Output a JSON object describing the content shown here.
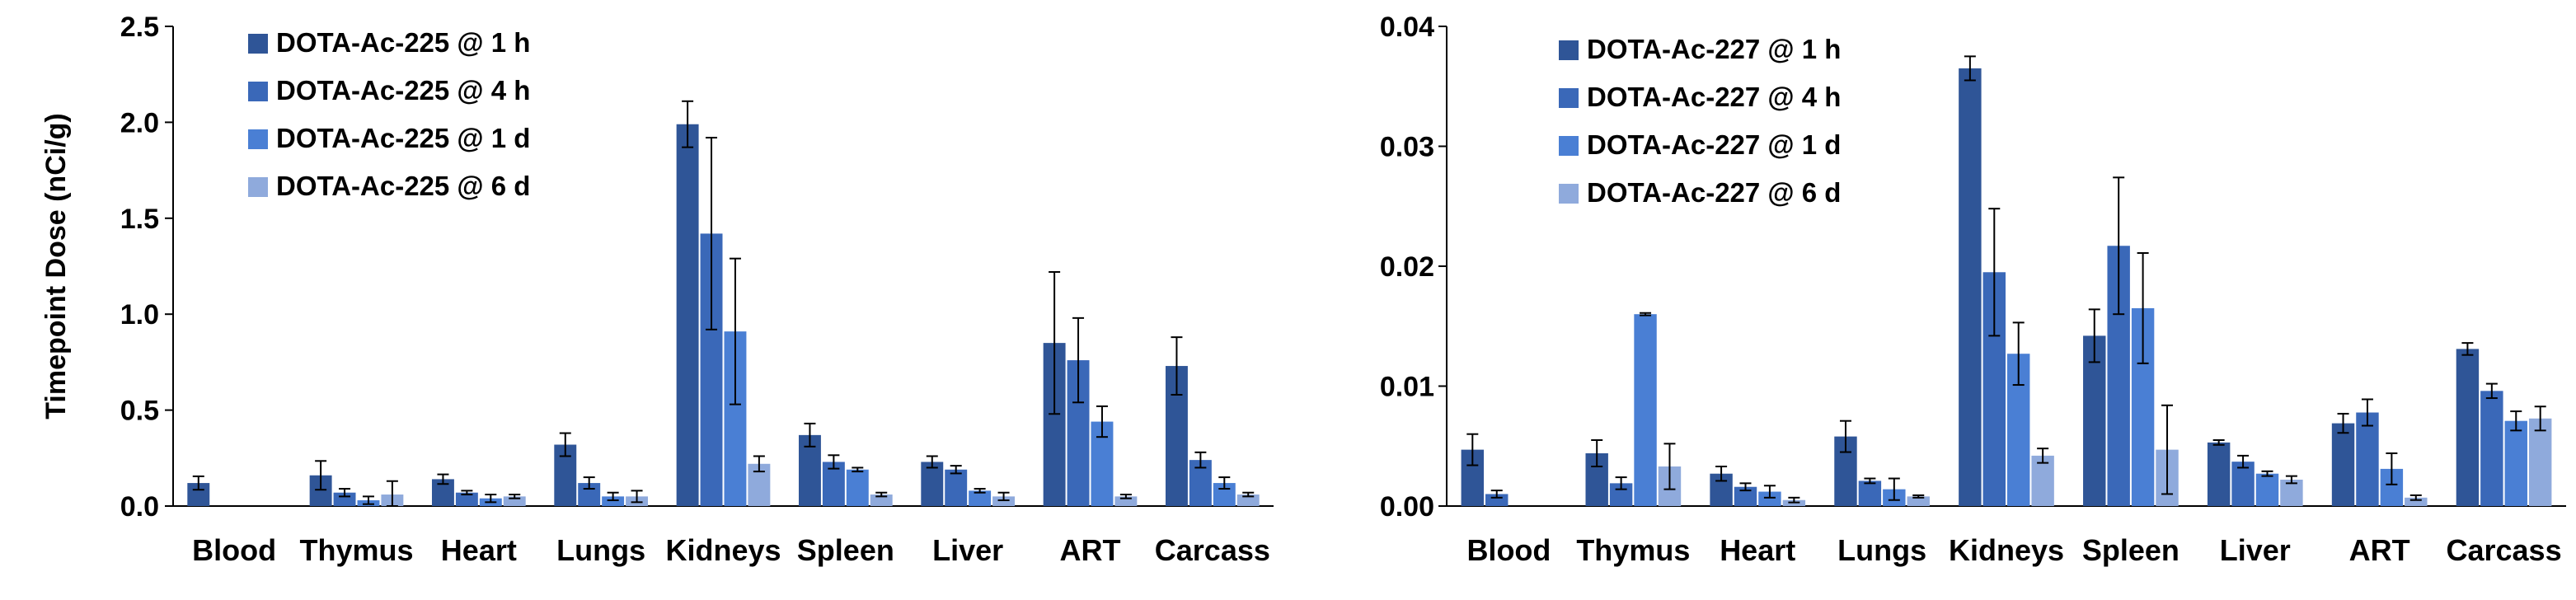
{
  "palette": [
    "#2f5597",
    "#3a68b8",
    "#4a7fd4",
    "#8faadc"
  ],
  "chart_data": [
    {
      "type": "bar",
      "title": "",
      "xlabel": "",
      "ylabel": "Timepoint Dose (nCi/g)",
      "ylim": [
        0,
        2.5
      ],
      "yticks": [
        "0.0",
        "0.5",
        "1.0",
        "1.5",
        "2.0",
        "2.5"
      ],
      "grid": false,
      "legend_position": "top-left",
      "categories": [
        "Blood",
        "Thymus",
        "Heart",
        "Lungs",
        "Kidneys",
        "Spleen",
        "Liver",
        "ART",
        "Carcass"
      ],
      "series": [
        {
          "name": "DOTA-Ac-225 @ 1 h",
          "values": [
            0.12,
            0.16,
            0.14,
            0.32,
            1.99,
            0.37,
            0.23,
            0.85,
            0.73
          ],
          "errors": [
            0.035,
            0.075,
            0.025,
            0.06,
            0.12,
            0.06,
            0.03,
            0.37,
            0.15
          ]
        },
        {
          "name": "DOTA-Ac-225 @ 4 h",
          "values": [
            0,
            0.07,
            0.07,
            0.12,
            1.42,
            0.23,
            0.19,
            0.76,
            0.24
          ],
          "errors": [
            0,
            0.02,
            0.01,
            0.03,
            0.5,
            0.035,
            0.02,
            0.22,
            0.04
          ]
        },
        {
          "name": "DOTA-Ac-225 @ 1 d",
          "values": [
            0,
            0.03,
            0.04,
            0.05,
            0.91,
            0.19,
            0.08,
            0.44,
            0.12
          ],
          "errors": [
            0,
            0.02,
            0.02,
            0.02,
            0.38,
            0.01,
            0.01,
            0.08,
            0.03
          ]
        },
        {
          "name": "DOTA-Ac-225 @ 6 d",
          "values": [
            0,
            0.06,
            0.05,
            0.05,
            0.22,
            0.06,
            0.05,
            0.05,
            0.06
          ],
          "errors": [
            0,
            0.07,
            0.01,
            0.03,
            0.04,
            0.01,
            0.02,
            0.01,
            0.01
          ]
        }
      ]
    },
    {
      "type": "bar",
      "title": "",
      "xlabel": "",
      "ylabel": "",
      "ylim": [
        0,
        0.04
      ],
      "yticks": [
        "0.00",
        "0.01",
        "0.02",
        "0.03",
        "0.04"
      ],
      "grid": false,
      "legend_position": "top-left",
      "categories": [
        "Blood",
        "Thymus",
        "Heart",
        "Lungs",
        "Kidneys",
        "Spleen",
        "Liver",
        "ART",
        "Carcass"
      ],
      "series": [
        {
          "name": "DOTA-Ac-227 @ 1 h",
          "values": [
            0.0047,
            0.0044,
            0.0027,
            0.0058,
            0.0365,
            0.0142,
            0.0053,
            0.0069,
            0.0131
          ],
          "errors": [
            0.0013,
            0.0011,
            0.0006,
            0.0013,
            0.001,
            0.0022,
            0.0002,
            0.0008,
            0.0005
          ]
        },
        {
          "name": "DOTA-Ac-227 @ 4 h",
          "values": [
            0.001,
            0.0019,
            0.0016,
            0.0021,
            0.0195,
            0.0217,
            0.0037,
            0.0078,
            0.0096
          ],
          "errors": [
            0.0003,
            0.0005,
            0.0003,
            0.0002,
            0.0053,
            0.0057,
            0.0005,
            0.0011,
            0.0006
          ]
        },
        {
          "name": "DOTA-Ac-227 @ 1 d",
          "values": [
            0,
            0.016,
            0.0012,
            0.0014,
            0.0127,
            0.0165,
            0.0027,
            0.0031,
            0.0071
          ],
          "errors": [
            0,
            0.0001,
            0.0005,
            0.0009,
            0.0026,
            0.0046,
            0.0002,
            0.0013,
            0.0008
          ]
        },
        {
          "name": "DOTA-Ac-227 @ 6 d",
          "values": [
            0,
            0.0033,
            0.0005,
            0.0008,
            0.0042,
            0.0047,
            0.0022,
            0.0007,
            0.0073
          ],
          "errors": [
            0,
            0.0019,
            0.0002,
            0.0001,
            0.0006,
            0.0037,
            0.0003,
            0.0002,
            0.001
          ]
        }
      ]
    }
  ]
}
